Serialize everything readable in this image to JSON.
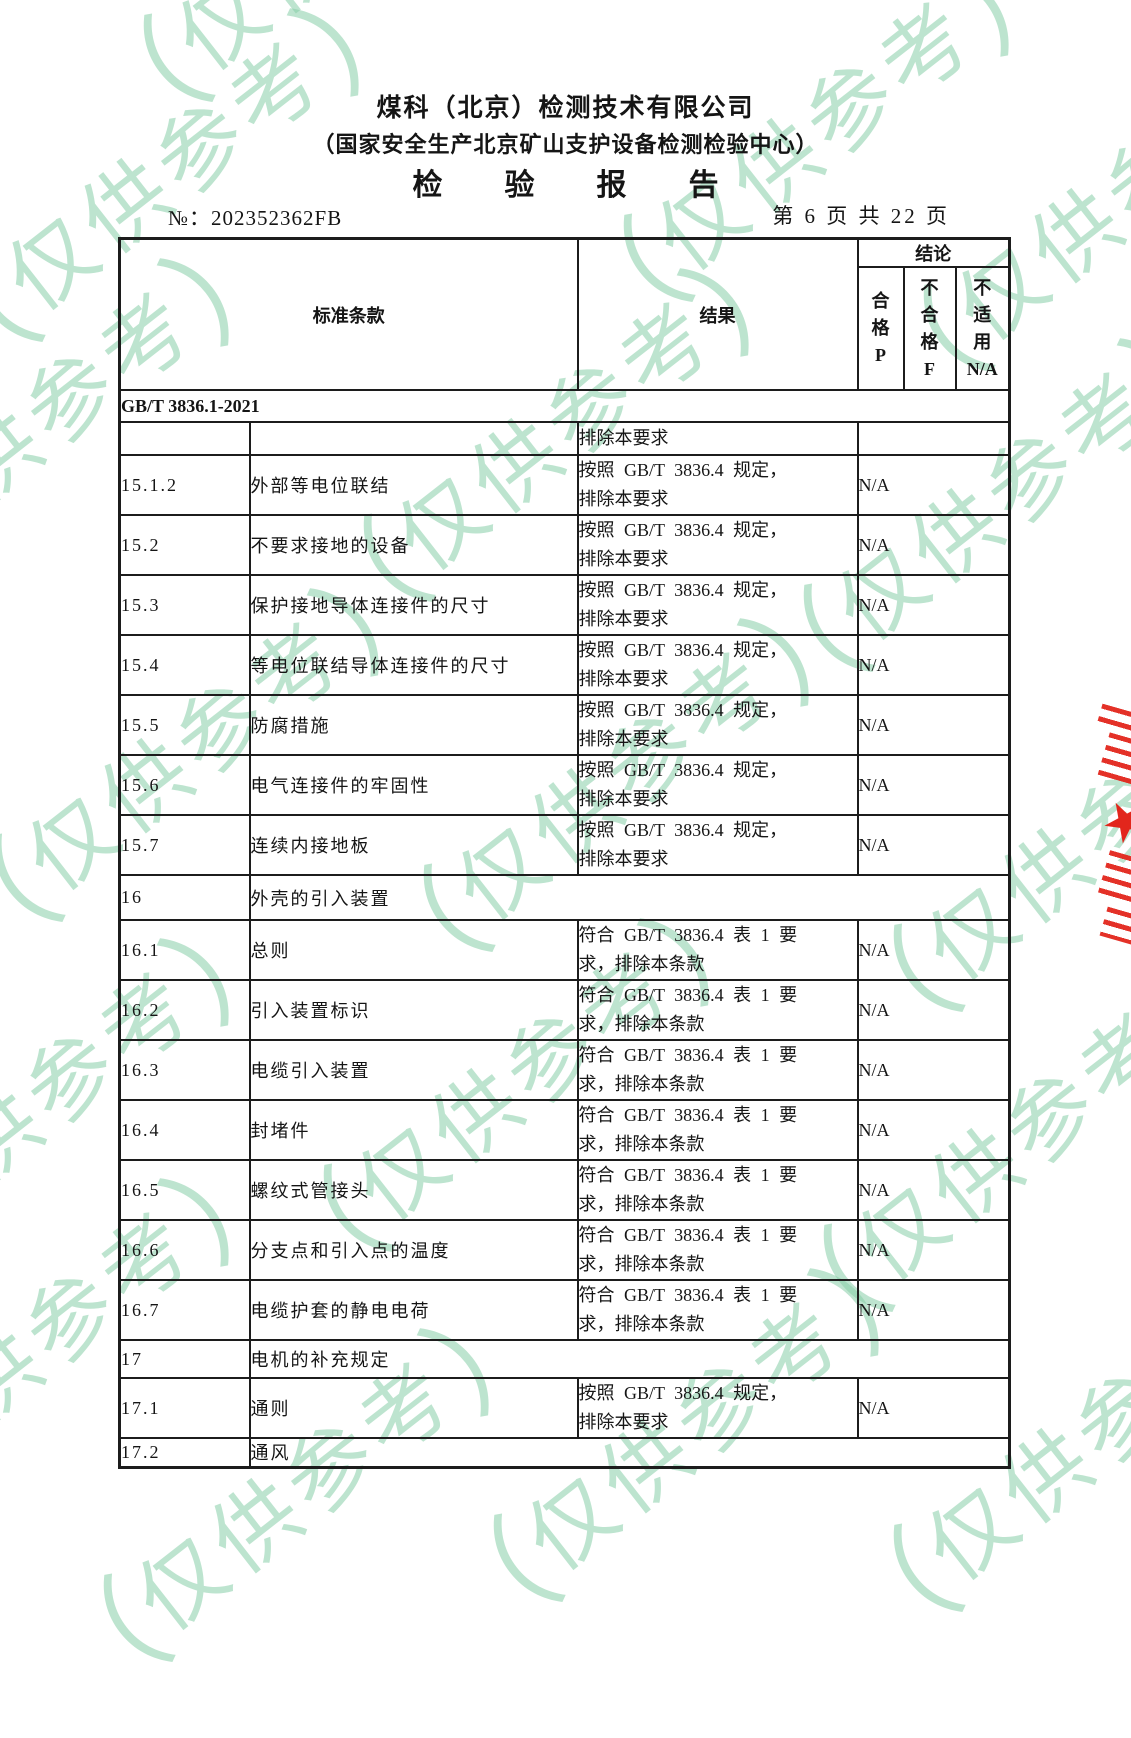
{
  "page": {
    "company": "煤科（北京）检测技术有限公司",
    "subtitle": "（国家安全生产北京矿山支护设备检测检验中心）",
    "report_title": "检　验　报　告",
    "report_no": "№：202352362FB",
    "page_indicator": "第 6 页 共 22 页"
  },
  "watermark": {
    "open_paren": "（",
    "text": "仅供参考",
    "close_paren": "）",
    "color": "#86cea8"
  },
  "seal": {
    "star": "★",
    "color": "#e2261c"
  },
  "table": {
    "header": {
      "clause": "标准条款",
      "result": "结果",
      "conclusion": "结论",
      "sub": [
        "合\n格\nP",
        "不\n合\n格\nF",
        "不\n适\n用\nN/A"
      ]
    },
    "rows": [
      {
        "kind": "section-full",
        "text": "GB/T 3836.1-2021"
      },
      {
        "kind": "partial",
        "num": "",
        "title": "",
        "result": "排除本要求",
        "conclusion": ""
      },
      {
        "kind": "data",
        "num": "15.1.2",
        "title": "外部等电位联结",
        "result": "按照 GB/T 3836.4 规定，\n排除本要求",
        "conclusion": "N/A"
      },
      {
        "kind": "data",
        "num": "15.2",
        "title": "不要求接地的设备",
        "result": "按照 GB/T 3836.4 规定，\n排除本要求",
        "conclusion": "N/A"
      },
      {
        "kind": "data",
        "num": "15.3",
        "title": "保护接地导体连接件的尺寸",
        "result": "按照 GB/T 3836.4 规定，\n排除本要求",
        "conclusion": "N/A"
      },
      {
        "kind": "data",
        "num": "15.4",
        "title": "等电位联结导体连接件的尺寸",
        "result": "按照 GB/T 3836.4 规定，\n排除本要求",
        "conclusion": "N/A"
      },
      {
        "kind": "data",
        "num": "15.5",
        "title": "防腐措施",
        "result": "按照 GB/T 3836.4 规定，\n排除本要求",
        "conclusion": "N/A"
      },
      {
        "kind": "data",
        "num": "15.6",
        "title": "电气连接件的牢固性",
        "result": "按照 GB/T 3836.4 规定，\n排除本要求",
        "conclusion": "N/A"
      },
      {
        "kind": "data",
        "num": "15.7",
        "title": "连续内接地板",
        "result": "按照 GB/T 3836.4 规定，\n排除本要求",
        "conclusion": "N/A"
      },
      {
        "kind": "section",
        "num": "16",
        "title": "外壳的引入装置"
      },
      {
        "kind": "data",
        "num": "16.1",
        "title": "总则",
        "result": "符合 GB/T 3836.4 表 1 要\n求，排除本条款",
        "conclusion": "N/A"
      },
      {
        "kind": "data",
        "num": "16.2",
        "title": "引入装置标识",
        "result": "符合 GB/T 3836.4 表 1 要\n求，排除本条款",
        "conclusion": "N/A"
      },
      {
        "kind": "data",
        "num": "16.3",
        "title": "电缆引入装置",
        "result": "符合 GB/T 3836.4 表 1 要\n求，排除本条款",
        "conclusion": "N/A"
      },
      {
        "kind": "data",
        "num": "16.4",
        "title": "封堵件",
        "result": "符合 GB/T 3836.4 表 1 要\n求，排除本条款",
        "conclusion": "N/A"
      },
      {
        "kind": "data",
        "num": "16.5",
        "title": "螺纹式管接头",
        "result": "符合 GB/T 3836.4 表 1 要\n求，排除本条款",
        "conclusion": "N/A"
      },
      {
        "kind": "data",
        "num": "16.6",
        "title": "分支点和引入点的温度",
        "result": "符合 GB/T 3836.4 表 1 要\n求，排除本条款",
        "conclusion": "N/A"
      },
      {
        "kind": "data",
        "num": "16.7",
        "title": "电缆护套的静电电荷",
        "result": "符合 GB/T 3836.4 表 1 要\n求，排除本条款",
        "conclusion": "N/A"
      },
      {
        "kind": "section",
        "num": "17",
        "title": "电机的补充规定"
      },
      {
        "kind": "data",
        "num": "17.1",
        "title": "通则",
        "result": "按照 GB/T 3836.4 规定，\n排除本要求",
        "conclusion": "N/A"
      },
      {
        "kind": "section",
        "num": "17.2",
        "title": "通风"
      }
    ]
  }
}
